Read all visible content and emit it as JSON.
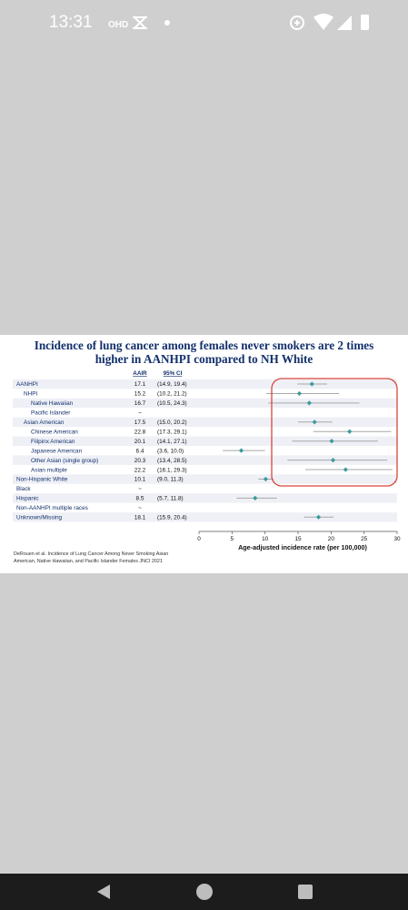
{
  "status_bar": {
    "time": "13:31",
    "left_icons": [
      "ohd-icon",
      "capcut-icon",
      "dot-icon"
    ],
    "right_icons": [
      "data-saver-icon",
      "wifi-icon",
      "signal-icon",
      "battery-icon"
    ]
  },
  "slide": {
    "title_line1": "Incidence of lung cancer among females never smokers are 2 times",
    "title_line2": "higher in AANHPI compared to NH White",
    "col_aair": "AAIR",
    "col_ci": "95% CI",
    "citation_line1": "DeRouen et al. Incidence of Lung Cancer Among Never Smoking Asian",
    "citation_line2": "American, Native Hawaiian, and Pacific Islander Females JNCI 2021",
    "accent_color": "#13306b",
    "marker_color": "#3a9b9b",
    "highlight_color": "#d9453a"
  },
  "chart_data": {
    "type": "forest",
    "xlabel": "Age-adjusted incidence rate (per 100,000)",
    "xlim": [
      0,
      30
    ],
    "xticks": [
      0,
      5,
      10,
      15,
      20,
      25,
      30
    ],
    "rows": [
      {
        "label": "AANHPI",
        "indent": 0,
        "aair": "17.1",
        "ci": "(14.9, 19.4)",
        "est": 17.1,
        "lo": 14.9,
        "hi": 19.4
      },
      {
        "label": "NHPI",
        "indent": 1,
        "aair": "15.2",
        "ci": "(10.2, 21.2)",
        "est": 15.2,
        "lo": 10.2,
        "hi": 21.2
      },
      {
        "label": "Native Hawaiian",
        "indent": 2,
        "aair": "16.7",
        "ci": "(10.5, 24.3)",
        "est": 16.7,
        "lo": 10.5,
        "hi": 24.3
      },
      {
        "label": "Pacific Islander",
        "indent": 2,
        "aair": "~",
        "ci": "",
        "est": null,
        "lo": null,
        "hi": null
      },
      {
        "label": "Asian American",
        "indent": 1,
        "aair": "17.5",
        "ci": "(15.0, 20.2)",
        "est": 17.5,
        "lo": 15.0,
        "hi": 20.2
      },
      {
        "label": "Chinese American",
        "indent": 2,
        "aair": "22.8",
        "ci": "(17.3, 29.1)",
        "est": 22.8,
        "lo": 17.3,
        "hi": 29.1
      },
      {
        "label": "Filipinx American",
        "indent": 2,
        "aair": "20.1",
        "ci": "(14.1, 27.1)",
        "est": 20.1,
        "lo": 14.1,
        "hi": 27.1
      },
      {
        "label": "Japanese American",
        "indent": 2,
        "aair": "6.4",
        "ci": "(3.6, 10.0)",
        "est": 6.4,
        "lo": 3.6,
        "hi": 10.0
      },
      {
        "label": "Other Asian (single group)",
        "indent": 2,
        "aair": "20.3",
        "ci": "(13.4, 28.5)",
        "est": 20.3,
        "lo": 13.4,
        "hi": 28.5
      },
      {
        "label": "Asian multiple",
        "indent": 2,
        "aair": "22.2",
        "ci": "(16.1, 29.3)",
        "est": 22.2,
        "lo": 16.1,
        "hi": 29.3
      },
      {
        "label": "Non-Hispanic White",
        "indent": 0,
        "aair": "10.1",
        "ci": "(9.0, 11.3)",
        "est": 10.1,
        "lo": 9.0,
        "hi": 11.3
      },
      {
        "label": "Black",
        "indent": 0,
        "aair": "~",
        "ci": "",
        "est": null,
        "lo": null,
        "hi": null
      },
      {
        "label": "Hispanic",
        "indent": 0,
        "aair": "8.5",
        "ci": "(5.7, 11.8)",
        "est": 8.5,
        "lo": 5.7,
        "hi": 11.8
      },
      {
        "label": "Non-AANHPI multiple races",
        "indent": 0,
        "aair": "~",
        "ci": "",
        "est": null,
        "lo": null,
        "hi": null
      },
      {
        "label": "Unknown/Missing",
        "indent": 0,
        "aair": "18.1",
        "ci": "(15.9, 20.4)",
        "est": 18.1,
        "lo": 15.9,
        "hi": 20.4
      }
    ]
  }
}
